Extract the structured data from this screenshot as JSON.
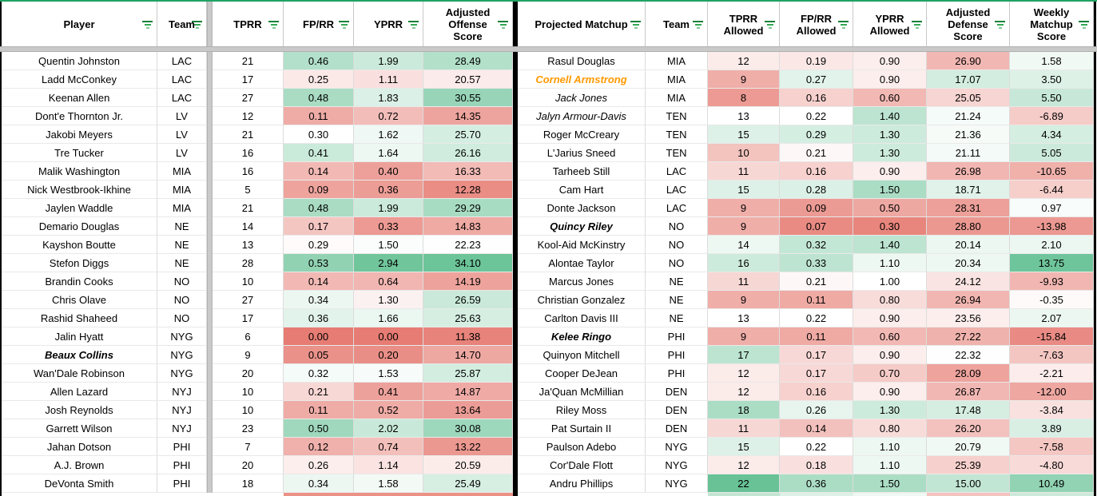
{
  "colors": {
    "scale_red": "#e67c73",
    "scale_green": "#57bb8a",
    "highlight_orange": "#ff9900",
    "filter_icon_green": "#2d9e5f",
    "frozen_line_green": "#1fa463"
  },
  "left_table": {
    "headers": [
      {
        "label": "Player"
      },
      {
        "label": "Team"
      },
      {
        "label": "TPRR"
      },
      {
        "label": "FP/RR"
      },
      {
        "label": "YPRR"
      },
      {
        "label": "Adjusted Offense Score"
      }
    ],
    "rows": [
      {
        "player": "Quentin Johnston",
        "team": "LAC",
        "tprr": "21",
        "fprr": "0.46",
        "yprr": "1.99",
        "score": "28.49",
        "style": "normal"
      },
      {
        "player": "Ladd McConkey",
        "team": "LAC",
        "tprr": "17",
        "fprr": "0.25",
        "yprr": "1.11",
        "score": "20.57",
        "style": "normal"
      },
      {
        "player": "Keenan Allen",
        "team": "LAC",
        "tprr": "27",
        "fprr": "0.48",
        "yprr": "1.83",
        "score": "30.55",
        "style": "normal"
      },
      {
        "player": "Dont'e Thornton Jr.",
        "team": "LV",
        "tprr": "12",
        "fprr": "0.11",
        "yprr": "0.72",
        "score": "14.35",
        "style": "normal"
      },
      {
        "player": "Jakobi Meyers",
        "team": "LV",
        "tprr": "21",
        "fprr": "0.30",
        "yprr": "1.62",
        "score": "25.70",
        "style": "normal"
      },
      {
        "player": "Tre Tucker",
        "team": "LV",
        "tprr": "16",
        "fprr": "0.41",
        "yprr": "1.64",
        "score": "26.16",
        "style": "normal"
      },
      {
        "player": "Malik Washington",
        "team": "MIA",
        "tprr": "16",
        "fprr": "0.14",
        "yprr": "0.40",
        "score": "16.33",
        "style": "normal"
      },
      {
        "player": "Nick Westbrook-Ikhine",
        "team": "MIA",
        "tprr": "5",
        "fprr": "0.09",
        "yprr": "0.36",
        "score": "12.28",
        "style": "normal"
      },
      {
        "player": "Jaylen Waddle",
        "team": "MIA",
        "tprr": "21",
        "fprr": "0.48",
        "yprr": "1.99",
        "score": "29.29",
        "style": "normal"
      },
      {
        "player": "Demario Douglas",
        "team": "NE",
        "tprr": "14",
        "fprr": "0.17",
        "yprr": "0.33",
        "score": "14.83",
        "style": "normal"
      },
      {
        "player": "Kayshon Boutte",
        "team": "NE",
        "tprr": "13",
        "fprr": "0.29",
        "yprr": "1.50",
        "score": "22.23",
        "style": "normal"
      },
      {
        "player": "Stefon Diggs",
        "team": "NE",
        "tprr": "28",
        "fprr": "0.53",
        "yprr": "2.94",
        "score": "34.10",
        "style": "normal"
      },
      {
        "player": "Brandin Cooks",
        "team": "NO",
        "tprr": "10",
        "fprr": "0.14",
        "yprr": "0.64",
        "score": "14.19",
        "style": "normal"
      },
      {
        "player": "Chris Olave",
        "team": "NO",
        "tprr": "27",
        "fprr": "0.34",
        "yprr": "1.30",
        "score": "26.59",
        "style": "normal"
      },
      {
        "player": "Rashid Shaheed",
        "team": "NO",
        "tprr": "17",
        "fprr": "0.36",
        "yprr": "1.66",
        "score": "25.63",
        "style": "normal"
      },
      {
        "player": "Jalin Hyatt",
        "team": "NYG",
        "tprr": "6",
        "fprr": "0.00",
        "yprr": "0.00",
        "score": "11.38",
        "style": "normal"
      },
      {
        "player": "Beaux Collins",
        "team": "NYG",
        "tprr": "9",
        "fprr": "0.05",
        "yprr": "0.20",
        "score": "14.70",
        "style": "bold-italic"
      },
      {
        "player": "Wan'Dale Robinson",
        "team": "NYG",
        "tprr": "20",
        "fprr": "0.32",
        "yprr": "1.53",
        "score": "25.87",
        "style": "normal"
      },
      {
        "player": "Allen Lazard",
        "team": "NYJ",
        "tprr": "10",
        "fprr": "0.21",
        "yprr": "0.41",
        "score": "14.87",
        "style": "normal"
      },
      {
        "player": "Josh Reynolds",
        "team": "NYJ",
        "tprr": "10",
        "fprr": "0.11",
        "yprr": "0.52",
        "score": "13.64",
        "style": "normal"
      },
      {
        "player": "Garrett Wilson",
        "team": "NYJ",
        "tprr": "23",
        "fprr": "0.50",
        "yprr": "2.02",
        "score": "30.08",
        "style": "normal"
      },
      {
        "player": "Jahan Dotson",
        "team": "PHI",
        "tprr": "7",
        "fprr": "0.12",
        "yprr": "0.74",
        "score": "13.22",
        "style": "normal"
      },
      {
        "player": "A.J. Brown",
        "team": "PHI",
        "tprr": "20",
        "fprr": "0.26",
        "yprr": "1.14",
        "score": "20.59",
        "style": "normal"
      },
      {
        "player": "DeVonta Smith",
        "team": "PHI",
        "tprr": "18",
        "fprr": "0.34",
        "yprr": "1.58",
        "score": "25.49",
        "style": "normal"
      }
    ]
  },
  "right_table": {
    "headers": [
      {
        "label": "Projected Matchup"
      },
      {
        "label": "Team"
      },
      {
        "label": "TPRR Allowed"
      },
      {
        "label": "FP/RR Allowed"
      },
      {
        "label": "YPRR Allowed"
      },
      {
        "label": "Adjusted Defense Score"
      },
      {
        "label": "Weekly Matchup Score"
      }
    ],
    "rows": [
      {
        "player": "Rasul Douglas",
        "team": "MIA",
        "tprr": "12",
        "fprr": "0.19",
        "yprr": "0.90",
        "def": "26.90",
        "weekly": "1.58",
        "style": "normal"
      },
      {
        "player": "Cornell Armstrong",
        "team": "MIA",
        "tprr": "9",
        "fprr": "0.27",
        "yprr": "0.90",
        "def": "17.07",
        "weekly": "3.50",
        "style": "orange"
      },
      {
        "player": "Jack Jones",
        "team": "MIA",
        "tprr": "8",
        "fprr": "0.16",
        "yprr": "0.60",
        "def": "25.05",
        "weekly": "5.50",
        "style": "italic"
      },
      {
        "player": "Jalyn Armour-Davis",
        "team": "TEN",
        "tprr": "13",
        "fprr": "0.22",
        "yprr": "1.40",
        "def": "21.24",
        "weekly": "-6.89",
        "style": "italic"
      },
      {
        "player": "Roger McCreary",
        "team": "TEN",
        "tprr": "15",
        "fprr": "0.29",
        "yprr": "1.30",
        "def": "21.36",
        "weekly": "4.34",
        "style": "normal"
      },
      {
        "player": "L'Jarius Sneed",
        "team": "TEN",
        "tprr": "10",
        "fprr": "0.21",
        "yprr": "1.30",
        "def": "21.11",
        "weekly": "5.05",
        "style": "normal"
      },
      {
        "player": "Tarheeb Still",
        "team": "LAC",
        "tprr": "11",
        "fprr": "0.16",
        "yprr": "0.90",
        "def": "26.98",
        "weekly": "-10.65",
        "style": "normal"
      },
      {
        "player": "Cam Hart",
        "team": "LAC",
        "tprr": "15",
        "fprr": "0.28",
        "yprr": "1.50",
        "def": "18.71",
        "weekly": "-6.44",
        "style": "normal"
      },
      {
        "player": "Donte Jackson",
        "team": "LAC",
        "tprr": "9",
        "fprr": "0.09",
        "yprr": "0.50",
        "def": "28.31",
        "weekly": "0.97",
        "style": "normal"
      },
      {
        "player": "Quincy Riley",
        "team": "NO",
        "tprr": "9",
        "fprr": "0.07",
        "yprr": "0.30",
        "def": "28.80",
        "weekly": "-13.98",
        "style": "bold-italic"
      },
      {
        "player": "Kool-Aid McKinstry",
        "team": "NO",
        "tprr": "14",
        "fprr": "0.32",
        "yprr": "1.40",
        "def": "20.14",
        "weekly": "2.10",
        "style": "normal"
      },
      {
        "player": "Alontae Taylor",
        "team": "NO",
        "tprr": "16",
        "fprr": "0.33",
        "yprr": "1.10",
        "def": "20.34",
        "weekly": "13.75",
        "style": "normal"
      },
      {
        "player": "Marcus Jones",
        "team": "NE",
        "tprr": "11",
        "fprr": "0.21",
        "yprr": "1.00",
        "def": "24.12",
        "weekly": "-9.93",
        "style": "normal"
      },
      {
        "player": "Christian Gonzalez",
        "team": "NE",
        "tprr": "9",
        "fprr": "0.11",
        "yprr": "0.80",
        "def": "26.94",
        "weekly": "-0.35",
        "style": "normal"
      },
      {
        "player": "Carlton Davis III",
        "team": "NE",
        "tprr": "13",
        "fprr": "0.22",
        "yprr": "0.90",
        "def": "23.56",
        "weekly": "2.07",
        "style": "normal"
      },
      {
        "player": "Kelee Ringo",
        "team": "PHI",
        "tprr": "9",
        "fprr": "0.11",
        "yprr": "0.60",
        "def": "27.22",
        "weekly": "-15.84",
        "style": "bold-italic"
      },
      {
        "player": "Quinyon Mitchell",
        "team": "PHI",
        "tprr": "17",
        "fprr": "0.17",
        "yprr": "0.90",
        "def": "22.32",
        "weekly": "-7.63",
        "style": "normal"
      },
      {
        "player": "Cooper DeJean",
        "team": "PHI",
        "tprr": "12",
        "fprr": "0.17",
        "yprr": "0.70",
        "def": "28.09",
        "weekly": "-2.21",
        "style": "normal"
      },
      {
        "player": "Ja'Quan McMillian",
        "team": "DEN",
        "tprr": "12",
        "fprr": "0.16",
        "yprr": "0.90",
        "def": "26.87",
        "weekly": "-12.00",
        "style": "normal"
      },
      {
        "player": "Riley Moss",
        "team": "DEN",
        "tprr": "18",
        "fprr": "0.26",
        "yprr": "1.30",
        "def": "17.48",
        "weekly": "-3.84",
        "style": "normal"
      },
      {
        "player": "Pat Surtain II",
        "team": "DEN",
        "tprr": "11",
        "fprr": "0.14",
        "yprr": "0.80",
        "def": "26.20",
        "weekly": "3.89",
        "style": "normal"
      },
      {
        "player": "Paulson Adebo",
        "team": "NYG",
        "tprr": "15",
        "fprr": "0.22",
        "yprr": "1.10",
        "def": "20.79",
        "weekly": "-7.58",
        "style": "normal"
      },
      {
        "player": "Cor'Dale Flott",
        "team": "NYG",
        "tprr": "12",
        "fprr": "0.18",
        "yprr": "1.10",
        "def": "25.39",
        "weekly": "-4.80",
        "style": "normal"
      },
      {
        "player": "Andru Phillips",
        "team": "NYG",
        "tprr": "22",
        "fprr": "0.36",
        "yprr": "1.50",
        "def": "15.00",
        "weekly": "10.49",
        "style": "normal"
      }
    ]
  },
  "color_scales": {
    "left_fprr": {
      "low": 0.0,
      "mid": 0.3,
      "high": 0.65,
      "invert": false
    },
    "left_yprr": {
      "low": 0.0,
      "mid": 1.45,
      "high": 3.2,
      "invert": false
    },
    "left_score": {
      "low": 10.8,
      "mid": 22.3,
      "high": 35.8,
      "invert": false
    },
    "right_tprr": {
      "low": 6.5,
      "mid": 13.0,
      "high": 23.0,
      "invert": false
    },
    "right_fprr": {
      "low": 0.05,
      "mid": 0.22,
      "high": 0.5,
      "invert": false
    },
    "right_yprr": {
      "low": 0.25,
      "mid": 1.0,
      "high": 2.0,
      "invert": false
    },
    "right_def": {
      "low": 2.0,
      "mid": 22.5,
      "high": 30.5,
      "invert": true
    },
    "right_weekly": {
      "low": -18.0,
      "mid": 0.3,
      "high": 16.0,
      "invert": false
    }
  }
}
